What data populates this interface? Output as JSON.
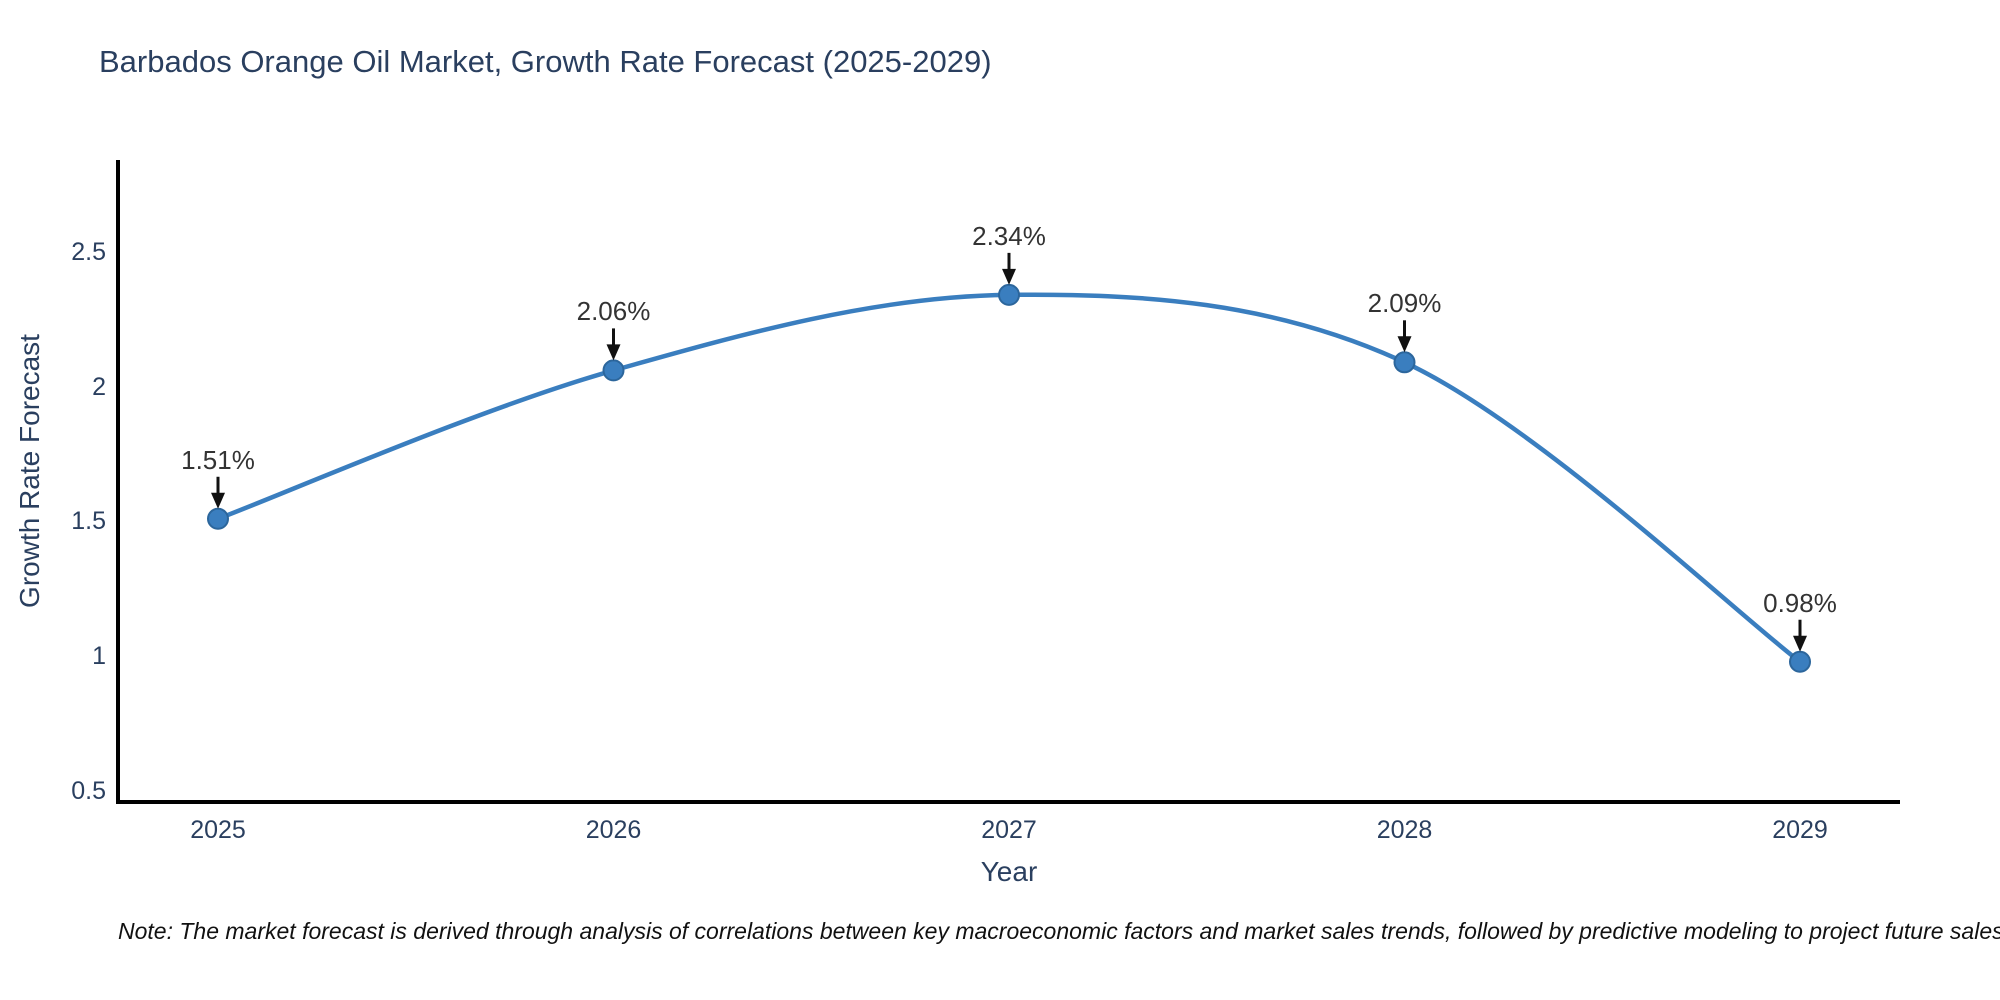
{
  "title": {
    "text": "Barbados Orange Oil Market, Growth Rate Forecast (2025-2029)"
  },
  "note": {
    "text": "Note: The market forecast is derived through analysis of correlations between key macroeconomic factors and market sales trends, followed by predictive modeling to project future sales"
  },
  "colors": {
    "text": "#2a3f5f",
    "annotation_text": "#333333",
    "arrow": "#111111",
    "axis_line": "#000000",
    "line": "#3a7ebf",
    "marker_fill": "#3a7ebf",
    "marker_edge": "#2c669c",
    "background": "#ffffff"
  },
  "chart_data": {
    "type": "line",
    "title": "Barbados Orange Oil Market, Growth Rate Forecast (2025-2029)",
    "x": [
      "2025",
      "2026",
      "2027",
      "2028",
      "2029"
    ],
    "series": [
      {
        "name": "Growth Rate Forecast",
        "values": [
          1.51,
          2.06,
          2.34,
          2.09,
          0.98
        ],
        "labels": [
          "1.51%",
          "2.06%",
          "2.34%",
          "2.09%",
          "0.98%"
        ]
      }
    ],
    "xlabel": "Year",
    "ylabel": "Growth Rate Forecast",
    "ytick_labels": [
      "0.5",
      "1",
      "1.5",
      "2",
      "2.5"
    ],
    "ytick_values": [
      0.5,
      1,
      1.5,
      2,
      2.5
    ],
    "ylim": [
      0.46,
      2.84
    ],
    "line_shape": "spline",
    "grid": false,
    "legend_position": "none",
    "annotations": "value labels with down arrows above each point"
  }
}
